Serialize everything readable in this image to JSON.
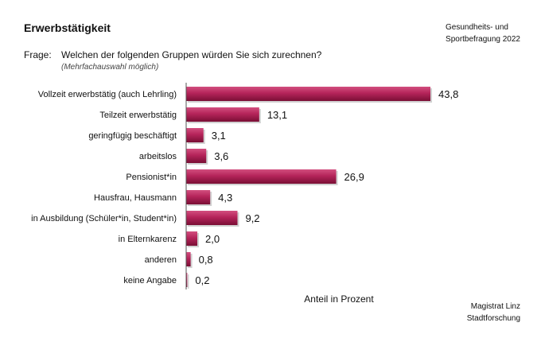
{
  "header": {
    "title": "Erwerbstätigkeit",
    "source_top_line1": "Gesundheits- und",
    "source_top_line2": "Sportbefragung 2022",
    "question_label": "Frage:",
    "question_text": "Welchen der folgenden Gruppen würden Sie sich zurechnen?",
    "question_note": "(Mehrfachauswahl möglich)"
  },
  "footer": {
    "source_line1": "Magistrat Linz",
    "source_line2": "Stadtforschung"
  },
  "colors": {
    "bar_dark": "#7a0f35",
    "bar_mid": "#b5245a",
    "bar_light": "#d24f7f",
    "axis": "#555555"
  },
  "chart_data": {
    "type": "bar",
    "orientation": "horizontal",
    "categories": [
      "Vollzeit erwerbstätig (auch Lehrling)",
      "Teilzeit erwerbstätig",
      "geringfügig beschäftigt",
      "arbeitslos",
      "Pensionist*in",
      "Hausfrau, Hausmann",
      "in Ausbildung (Schüler*in, Student*in)",
      "in Elternkarenz",
      "anderen",
      "keine Angabe"
    ],
    "values": [
      43.8,
      13.1,
      3.1,
      3.6,
      26.9,
      4.3,
      9.2,
      2.0,
      0.8,
      0.2
    ],
    "value_labels": [
      "43,8",
      "13,1",
      "3,1",
      "3,6",
      "26,9",
      "4,3",
      "9,2",
      "2,0",
      "0,8",
      "0,2"
    ],
    "xlabel": "Anteil in Prozent",
    "xlim": [
      0,
      50
    ],
    "grid": false,
    "legend": "none"
  }
}
